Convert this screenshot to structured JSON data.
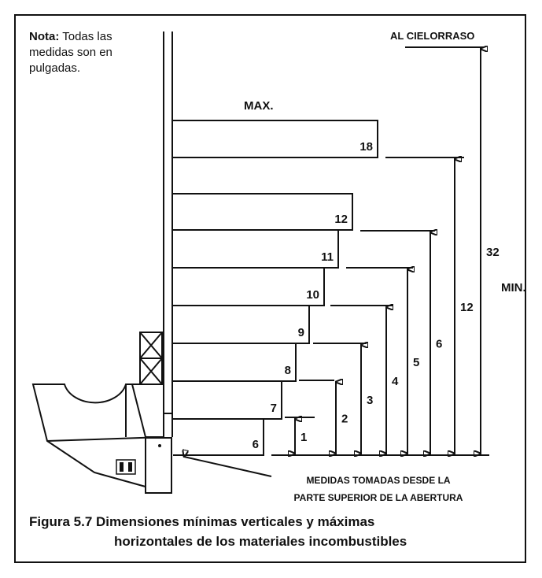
{
  "note": {
    "label": "Nota:",
    "lines": [
      "Todas las",
      "medidas son en",
      "pulgadas."
    ]
  },
  "ceiling_label": "AL CIELORRASO",
  "max_label": "MAX.",
  "min_label": "MIN.",
  "shelves": [
    "18",
    "12",
    "11",
    "10",
    "9",
    "8",
    "7",
    "6"
  ],
  "dimensions": [
    "1",
    "2",
    "3",
    "4",
    "5",
    "6",
    "12",
    "32"
  ],
  "callout": [
    "MEDIDAS TOMADAS DESDE LA",
    "PARTE SUPERIOR DE LA ABERTURA"
  ],
  "caption": [
    "Figura 5.7  Dimensiones mínimas verticales y máximas",
    "horizontales de los materiales incombustibles"
  ]
}
